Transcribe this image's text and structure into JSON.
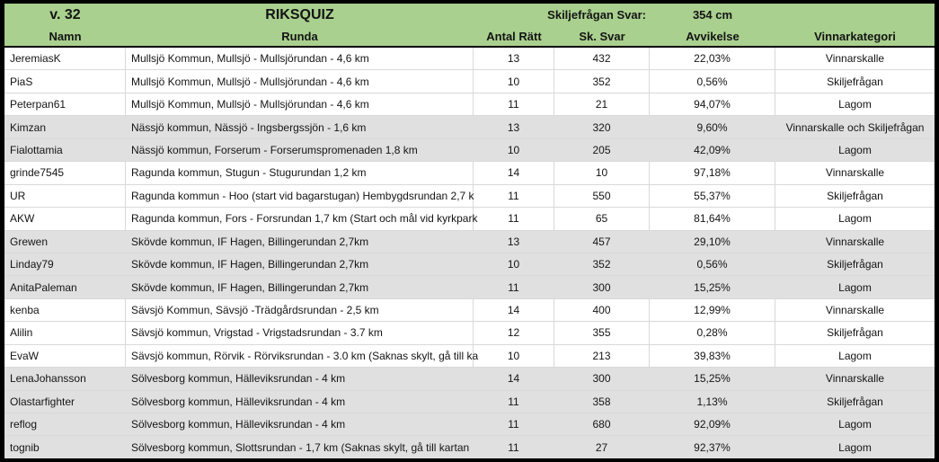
{
  "table": {
    "week": "v. 32",
    "title": "RIKSQUIZ",
    "tiebreaker_label": "Skiljefrågan Svar:",
    "tiebreaker_value": "354 cm",
    "columns": [
      "Namn",
      "Runda",
      "Antal Rätt",
      "Sk. Svar",
      "Avvikelse",
      "Vinnarkategori"
    ],
    "rows": [
      {
        "namn": "JeremiasK",
        "runda": "Mullsjö Kommun, Mullsjö - Mullsjörundan - 4,6 km",
        "antal_ratt": "13",
        "sk_svar": "432",
        "avvikelse": "22,03%",
        "vinnarkategori": "Vinnarskalle",
        "shaded": false
      },
      {
        "namn": "PiaS",
        "runda": "Mullsjö Kommun, Mullsjö - Mullsjörundan - 4,6 km",
        "antal_ratt": "10",
        "sk_svar": "352",
        "avvikelse": "0,56%",
        "vinnarkategori": "Skiljefrågan",
        "shaded": false
      },
      {
        "namn": "Peterpan61",
        "runda": "Mullsjö Kommun, Mullsjö - Mullsjörundan - 4,6 km",
        "antal_ratt": "11",
        "sk_svar": "21",
        "avvikelse": "94,07%",
        "vinnarkategori": "Lagom",
        "shaded": false
      },
      {
        "namn": "Kimzan",
        "runda": "Nässjö kommun, Nässjö - Ingsbergssjön - 1,6 km",
        "antal_ratt": "13",
        "sk_svar": "320",
        "avvikelse": "9,60%",
        "vinnarkategori": "Vinnarskalle och Skiljefrågan",
        "shaded": true
      },
      {
        "namn": "Fialottamia",
        "runda": "Nässjö kommun, Forserum - Forserumspromenaden 1,8 km",
        "antal_ratt": "10",
        "sk_svar": "205",
        "avvikelse": "42,09%",
        "vinnarkategori": "Lagom",
        "shaded": true
      },
      {
        "namn": "grinde7545",
        "runda": "Ragunda kommun, Stugun  - Stugurundan 1,2 km",
        "antal_ratt": "14",
        "sk_svar": "10",
        "avvikelse": "97,18%",
        "vinnarkategori": "Vinnarskalle",
        "shaded": false
      },
      {
        "namn": "UR",
        "runda": "Ragunda kommun - Hoo (start vid bagarstugan) Hembygdsrundan 2,7 k",
        "antal_ratt": "11",
        "sk_svar": "550",
        "avvikelse": "55,37%",
        "vinnarkategori": "Skiljefrågan",
        "shaded": false
      },
      {
        "namn": "AKW",
        "runda": "Ragunda kommun, Fors - Forsrundan 1,7 km (Start och mål vid kyrkpark",
        "antal_ratt": "11",
        "sk_svar": "65",
        "avvikelse": "81,64%",
        "vinnarkategori": "Lagom",
        "shaded": false
      },
      {
        "namn": "Grewen",
        "runda": "Skövde kommun, IF Hagen, Billingerundan 2,7km",
        "antal_ratt": "13",
        "sk_svar": "457",
        "avvikelse": "29,10%",
        "vinnarkategori": "Vinnarskalle",
        "shaded": true
      },
      {
        "namn": "Linday79",
        "runda": "Skövde kommun, IF Hagen, Billingerundan 2,7km",
        "antal_ratt": "10",
        "sk_svar": "352",
        "avvikelse": "0,56%",
        "vinnarkategori": "Skiljefrågan",
        "shaded": true
      },
      {
        "namn": "AnitaPaleman",
        "runda": "Skövde kommun, IF Hagen, Billingerundan 2,7km",
        "antal_ratt": "11",
        "sk_svar": "300",
        "avvikelse": "15,25%",
        "vinnarkategori": "Lagom",
        "shaded": true
      },
      {
        "namn": "kenba",
        "runda": "Sävsjö Kommun, Sävsjö -Trädgårdsrundan - 2,5 km",
        "antal_ratt": "14",
        "sk_svar": "400",
        "avvikelse": "12,99%",
        "vinnarkategori": "Vinnarskalle",
        "shaded": false
      },
      {
        "namn": "Alilin",
        "runda": "Sävsjö kommun, Vrigstad - Vrigstadsrundan - 3.7 km",
        "antal_ratt": "12",
        "sk_svar": "355",
        "avvikelse": "0,28%",
        "vinnarkategori": "Skiljefrågan",
        "shaded": false
      },
      {
        "namn": "EvaW",
        "runda": "Sävsjö kommun, Rörvik - Rörviksrundan - 3.0 km (Saknas skylt, gå till ka",
        "antal_ratt": "10",
        "sk_svar": "213",
        "avvikelse": "39,83%",
        "vinnarkategori": "Lagom",
        "shaded": false
      },
      {
        "namn": "LenaJohansson",
        "runda": "Sölvesborg kommun, Hälleviksrundan - 4 km",
        "antal_ratt": "14",
        "sk_svar": "300",
        "avvikelse": "15,25%",
        "vinnarkategori": "Vinnarskalle",
        "shaded": true
      },
      {
        "namn": "Olastarfighter",
        "runda": "Sölvesborg kommun, Hälleviksrundan - 4 km",
        "antal_ratt": "11",
        "sk_svar": "358",
        "avvikelse": "1,13%",
        "vinnarkategori": "Skiljefrågan",
        "shaded": true
      },
      {
        "namn": "reflog",
        "runda": "Sölvesborg kommun, Hälleviksrundan - 4 km",
        "antal_ratt": "11",
        "sk_svar": "680",
        "avvikelse": "92,09%",
        "vinnarkategori": "Lagom",
        "shaded": true
      },
      {
        "namn": "tognib",
        "runda": "Sölvesborg kommun, Slottsrundan - 1,7 km (Saknas skylt, gå till kartan",
        "antal_ratt": "11",
        "sk_svar": "27",
        "avvikelse": "92,37%",
        "vinnarkategori": "Lagom",
        "shaded": true
      }
    ]
  },
  "colors": {
    "header_green": "#a9d08e",
    "row_shade": "#e0e0e0",
    "grid": "#d9d9d9",
    "border": "#000000"
  }
}
